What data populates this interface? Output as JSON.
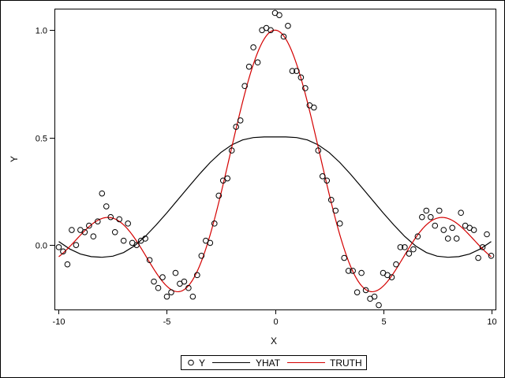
{
  "chart_data": {
    "type": "scatter",
    "title": "",
    "xlabel": "X",
    "ylabel": "Y",
    "xlim": [
      -10.2,
      10.2
    ],
    "ylim": [
      -0.3,
      1.1
    ],
    "x_ticks": [
      -10,
      -5,
      0,
      5,
      10
    ],
    "x_tick_labels": [
      "-10",
      "-5",
      "0",
      "5",
      "10"
    ],
    "y_ticks": [
      0.0,
      0.5,
      1.0
    ],
    "y_tick_labels": [
      "0.0",
      "0.5",
      "1.0"
    ],
    "grid": false,
    "legend_position": "bottom-center",
    "legend": [
      {
        "label": "Y",
        "marker": "circle",
        "color": "#000000"
      },
      {
        "label": "YHAT",
        "marker": "line",
        "color": "#000000"
      },
      {
        "label": "TRUTH",
        "marker": "line",
        "color": "#d40000"
      }
    ],
    "series": [
      {
        "name": "Y",
        "type": "scatter",
        "color": "#000000",
        "points": [
          [
            -10.0,
            -0.01
          ],
          [
            -9.8,
            -0.03
          ],
          [
            -9.6,
            -0.09
          ],
          [
            -9.4,
            0.07
          ],
          [
            -9.2,
            0.0
          ],
          [
            -9.0,
            0.07
          ],
          [
            -8.8,
            0.06
          ],
          [
            -8.6,
            0.09
          ],
          [
            -8.4,
            0.04
          ],
          [
            -8.2,
            0.11
          ],
          [
            -8.0,
            0.24
          ],
          [
            -7.8,
            0.18
          ],
          [
            -7.6,
            0.13
          ],
          [
            -7.4,
            0.06
          ],
          [
            -7.2,
            0.12
          ],
          [
            -7.0,
            0.02
          ],
          [
            -6.8,
            0.1
          ],
          [
            -6.6,
            0.01
          ],
          [
            -6.4,
            0.0
          ],
          [
            -6.2,
            0.02
          ],
          [
            -6.0,
            0.03
          ],
          [
            -5.8,
            -0.07
          ],
          [
            -5.6,
            -0.17
          ],
          [
            -5.4,
            -0.2
          ],
          [
            -5.2,
            -0.15
          ],
          [
            -5.0,
            -0.24
          ],
          [
            -4.8,
            -0.22
          ],
          [
            -4.6,
            -0.13
          ],
          [
            -4.4,
            -0.18
          ],
          [
            -4.2,
            -0.17
          ],
          [
            -4.0,
            -0.2
          ],
          [
            -3.8,
            -0.24
          ],
          [
            -3.6,
            -0.14
          ],
          [
            -3.4,
            -0.05
          ],
          [
            -3.2,
            0.02
          ],
          [
            -3.0,
            0.01
          ],
          [
            -2.8,
            0.1
          ],
          [
            -2.6,
            0.23
          ],
          [
            -2.4,
            0.3
          ],
          [
            -2.2,
            0.31
          ],
          [
            -2.0,
            0.44
          ],
          [
            -1.8,
            0.55
          ],
          [
            -1.6,
            0.58
          ],
          [
            -1.4,
            0.74
          ],
          [
            -1.2,
            0.83
          ],
          [
            -1.0,
            0.92
          ],
          [
            -0.8,
            0.85
          ],
          [
            -0.6,
            1.0
          ],
          [
            -0.4,
            1.01
          ],
          [
            -0.2,
            1.0
          ],
          [
            0.0,
            1.08
          ],
          [
            0.2,
            1.07
          ],
          [
            0.4,
            0.97
          ],
          [
            0.6,
            1.02
          ],
          [
            0.8,
            0.81
          ],
          [
            1.0,
            0.81
          ],
          [
            1.2,
            0.78
          ],
          [
            1.4,
            0.73
          ],
          [
            1.6,
            0.65
          ],
          [
            1.8,
            0.64
          ],
          [
            2.0,
            0.44
          ],
          [
            2.2,
            0.32
          ],
          [
            2.4,
            0.3
          ],
          [
            2.6,
            0.21
          ],
          [
            2.8,
            0.16
          ],
          [
            3.0,
            0.1
          ],
          [
            3.2,
            -0.06
          ],
          [
            3.4,
            -0.12
          ],
          [
            3.6,
            -0.12
          ],
          [
            3.8,
            -0.22
          ],
          [
            4.0,
            -0.13
          ],
          [
            4.2,
            -0.21
          ],
          [
            4.4,
            -0.25
          ],
          [
            4.6,
            -0.24
          ],
          [
            4.8,
            -0.28
          ],
          [
            5.0,
            -0.13
          ],
          [
            5.2,
            -0.14
          ],
          [
            5.4,
            -0.15
          ],
          [
            5.6,
            -0.09
          ],
          [
            5.8,
            -0.01
          ],
          [
            6.0,
            -0.01
          ],
          [
            6.2,
            -0.04
          ],
          [
            6.4,
            -0.02
          ],
          [
            6.6,
            0.04
          ],
          [
            6.8,
            0.13
          ],
          [
            7.0,
            0.16
          ],
          [
            7.2,
            0.13
          ],
          [
            7.4,
            0.09
          ],
          [
            7.6,
            0.16
          ],
          [
            7.8,
            0.07
          ],
          [
            8.0,
            0.03
          ],
          [
            8.2,
            0.08
          ],
          [
            8.4,
            0.03
          ],
          [
            8.6,
            0.15
          ],
          [
            8.8,
            0.09
          ],
          [
            9.0,
            0.08
          ],
          [
            9.2,
            0.07
          ],
          [
            9.4,
            -0.06
          ],
          [
            9.6,
            -0.01
          ],
          [
            9.8,
            0.05
          ],
          [
            10.0,
            -0.05
          ]
        ]
      },
      {
        "name": "YHAT",
        "type": "line",
        "color": "#000000",
        "points": [
          [
            -10.0,
            0.016
          ],
          [
            -9.5,
            -0.018
          ],
          [
            -9.0,
            -0.042
          ],
          [
            -8.5,
            -0.054
          ],
          [
            -8.0,
            -0.057
          ],
          [
            -7.5,
            -0.052
          ],
          [
            -7.0,
            -0.035
          ],
          [
            -6.5,
            -0.004
          ],
          [
            -6.0,
            0.04
          ],
          [
            -5.5,
            0.093
          ],
          [
            -5.0,
            0.15
          ],
          [
            -4.5,
            0.21
          ],
          [
            -4.0,
            0.27
          ],
          [
            -3.5,
            0.329
          ],
          [
            -3.0,
            0.384
          ],
          [
            -2.5,
            0.431
          ],
          [
            -2.0,
            0.466
          ],
          [
            -1.5,
            0.489
          ],
          [
            -1.0,
            0.5
          ],
          [
            -0.5,
            0.503
          ],
          [
            0.0,
            0.503
          ],
          [
            0.5,
            0.503
          ],
          [
            1.0,
            0.5
          ],
          [
            1.5,
            0.489
          ],
          [
            2.0,
            0.466
          ],
          [
            2.5,
            0.431
          ],
          [
            3.0,
            0.384
          ],
          [
            3.5,
            0.329
          ],
          [
            4.0,
            0.27
          ],
          [
            4.5,
            0.21
          ],
          [
            5.0,
            0.15
          ],
          [
            5.5,
            0.093
          ],
          [
            6.0,
            0.04
          ],
          [
            6.5,
            -0.004
          ],
          [
            7.0,
            -0.035
          ],
          [
            7.5,
            -0.052
          ],
          [
            8.0,
            -0.057
          ],
          [
            8.5,
            -0.054
          ],
          [
            9.0,
            -0.042
          ],
          [
            9.5,
            -0.018
          ],
          [
            10.0,
            0.016
          ]
        ]
      },
      {
        "name": "TRUTH",
        "type": "line",
        "color": "#d40000",
        "function": "sin(x)/x",
        "x_range": [
          -10,
          10
        ]
      }
    ]
  }
}
